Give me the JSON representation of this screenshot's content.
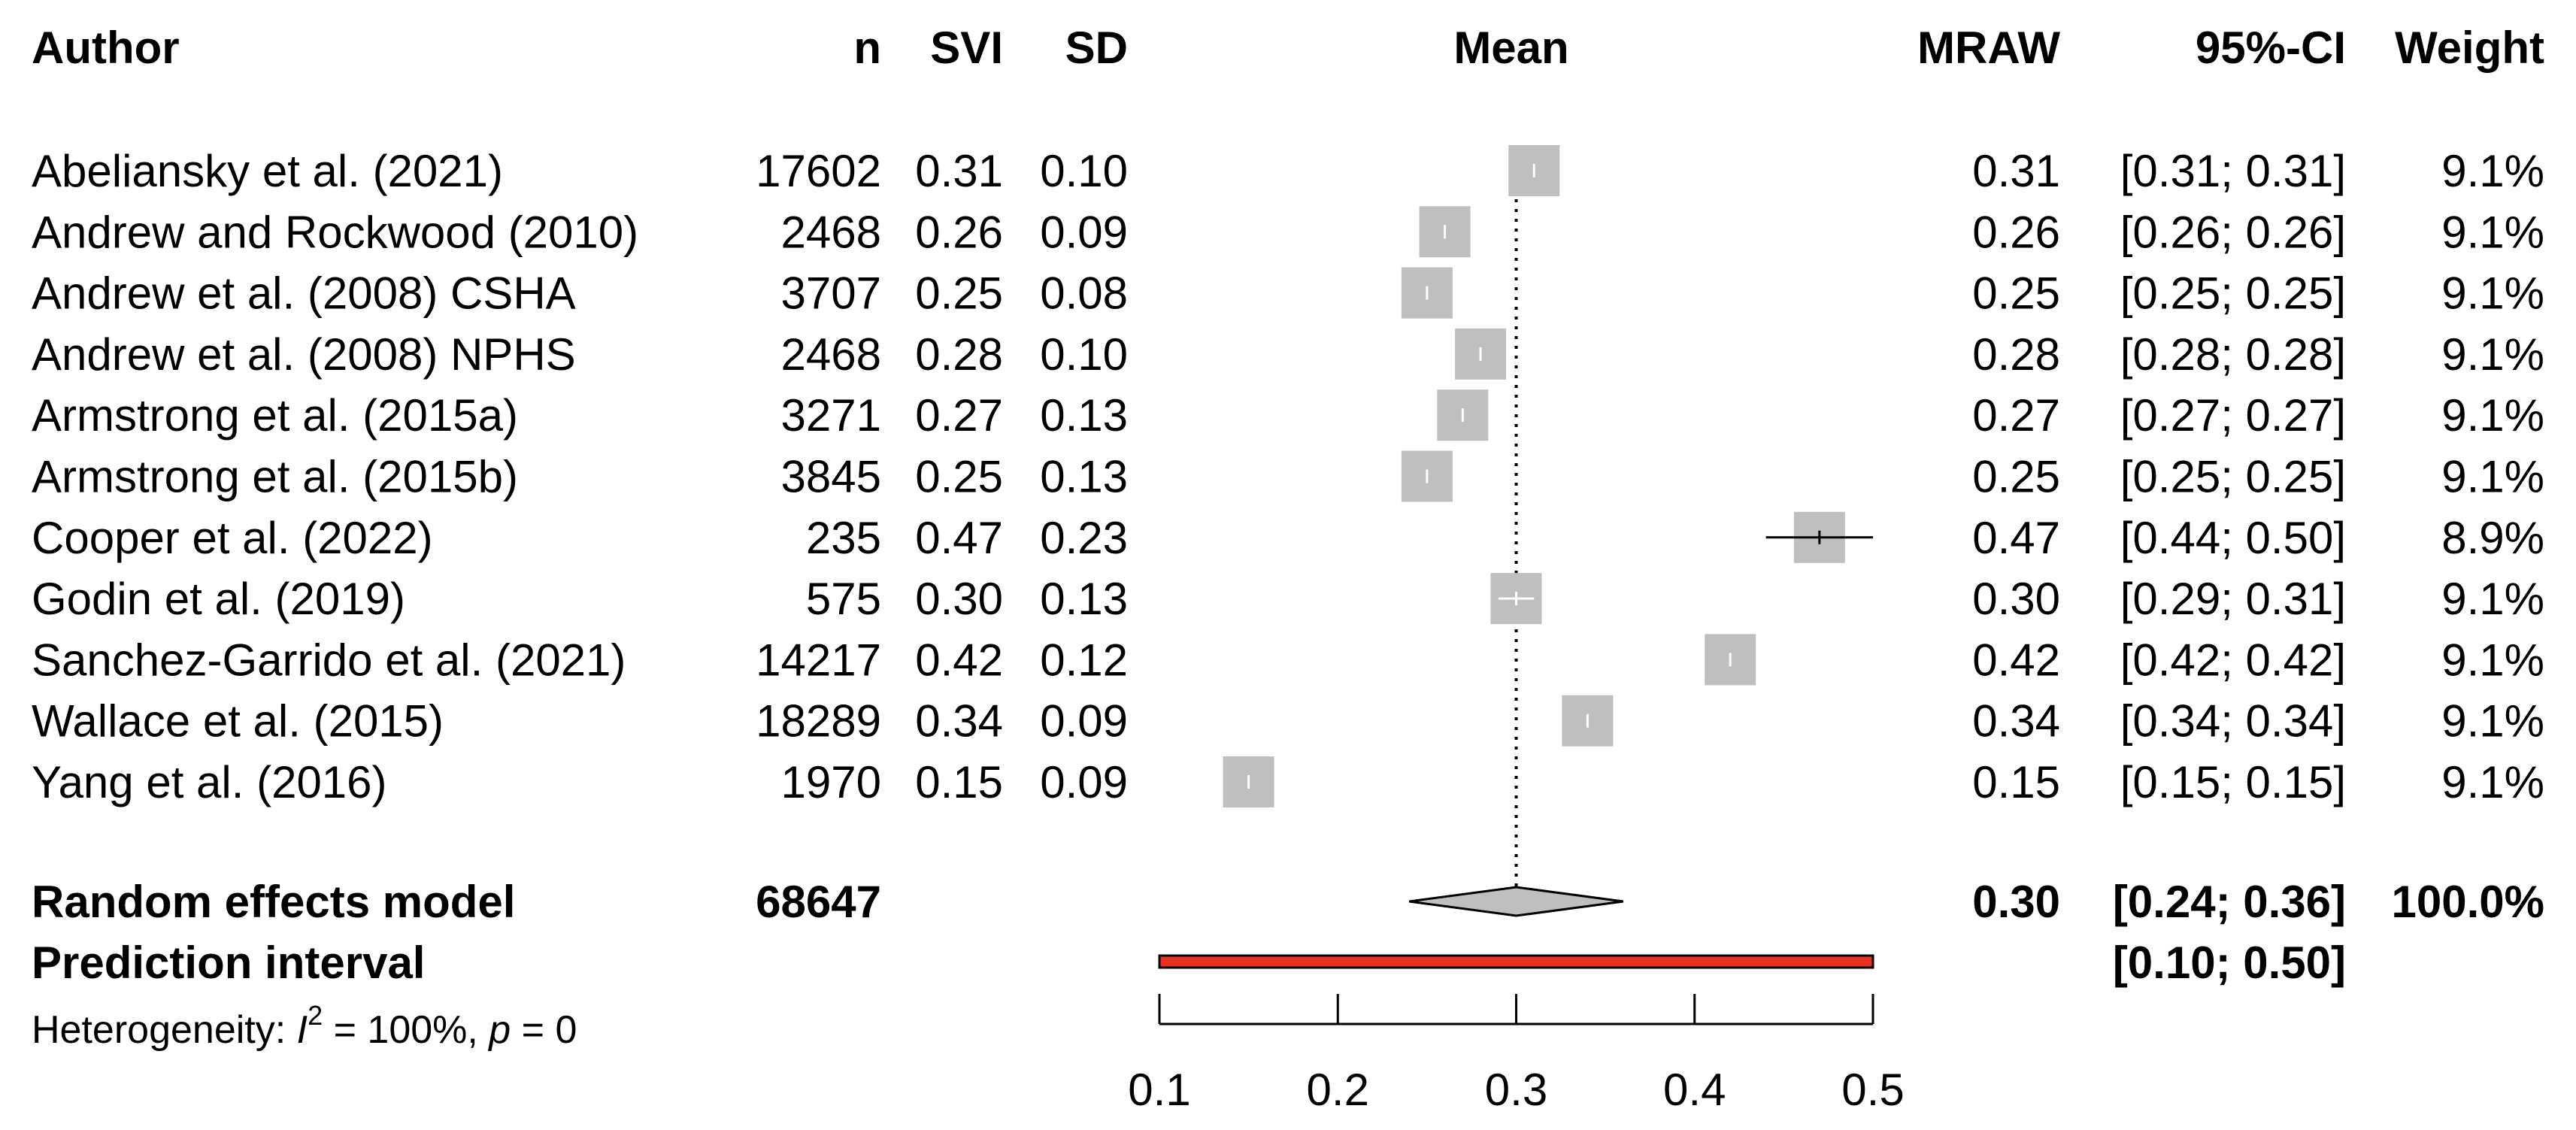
{
  "chart_data": {
    "type": "forest",
    "headers": {
      "author": "Author",
      "n": "n",
      "svi": "SVI",
      "sd": "SD",
      "mean": "Mean",
      "mraw": "MRAW",
      "ci": "95%-CI",
      "weight": "Weight"
    },
    "studies": [
      {
        "author": "Abeliansky et al. (2021)",
        "n": "17602",
        "svi": "0.31",
        "sd": "0.10",
        "mraw": "0.31",
        "ci": "[0.31; 0.31]",
        "weight": "9.1%",
        "mean": 0.31,
        "lower": 0.31,
        "upper": 0.31,
        "w": 9.1
      },
      {
        "author": "Andrew and Rockwood (2010)",
        "n": "2468",
        "svi": "0.26",
        "sd": "0.09",
        "mraw": "0.26",
        "ci": "[0.26; 0.26]",
        "weight": "9.1%",
        "mean": 0.26,
        "lower": 0.26,
        "upper": 0.26,
        "w": 9.1
      },
      {
        "author": "Andrew et al. (2008) CSHA",
        "n": "3707",
        "svi": "0.25",
        "sd": "0.08",
        "mraw": "0.25",
        "ci": "[0.25; 0.25]",
        "weight": "9.1%",
        "mean": 0.25,
        "lower": 0.25,
        "upper": 0.25,
        "w": 9.1
      },
      {
        "author": "Andrew et al. (2008) NPHS",
        "n": "2468",
        "svi": "0.28",
        "sd": "0.10",
        "mraw": "0.28",
        "ci": "[0.28; 0.28]",
        "weight": "9.1%",
        "mean": 0.28,
        "lower": 0.28,
        "upper": 0.28,
        "w": 9.1
      },
      {
        "author": "Armstrong et al. (2015a)",
        "n": "3271",
        "svi": "0.27",
        "sd": "0.13",
        "mraw": "0.27",
        "ci": "[0.27; 0.27]",
        "weight": "9.1%",
        "mean": 0.27,
        "lower": 0.27,
        "upper": 0.27,
        "w": 9.1
      },
      {
        "author": "Armstrong et al. (2015b)",
        "n": "3845",
        "svi": "0.25",
        "sd": "0.13",
        "mraw": "0.25",
        "ci": "[0.25; 0.25]",
        "weight": "9.1%",
        "mean": 0.25,
        "lower": 0.25,
        "upper": 0.25,
        "w": 9.1
      },
      {
        "author": "Cooper et al. (2022)",
        "n": "235",
        "svi": "0.47",
        "sd": "0.23",
        "mraw": "0.47",
        "ci": "[0.44; 0.50]",
        "weight": "8.9%",
        "mean": 0.47,
        "lower": 0.44,
        "upper": 0.5,
        "w": 8.9
      },
      {
        "author": "Godin et al. (2019)",
        "n": "575",
        "svi": "0.30",
        "sd": "0.13",
        "mraw": "0.30",
        "ci": "[0.29; 0.31]",
        "weight": "9.1%",
        "mean": 0.3,
        "lower": 0.29,
        "upper": 0.31,
        "w": 9.1
      },
      {
        "author": "Sanchez-Garrido et al. (2021)",
        "n": "14217",
        "svi": "0.42",
        "sd": "0.12",
        "mraw": "0.42",
        "ci": "[0.42; 0.42]",
        "weight": "9.1%",
        "mean": 0.42,
        "lower": 0.42,
        "upper": 0.42,
        "w": 9.1
      },
      {
        "author": "Wallace et al. (2015)",
        "n": "18289",
        "svi": "0.34",
        "sd": "0.09",
        "mraw": "0.34",
        "ci": "[0.34; 0.34]",
        "weight": "9.1%",
        "mean": 0.34,
        "lower": 0.34,
        "upper": 0.34,
        "w": 9.1
      },
      {
        "author": "Yang et al. (2016)",
        "n": "1970",
        "svi": "0.15",
        "sd": "0.09",
        "mraw": "0.15",
        "ci": "[0.15; 0.15]",
        "weight": "9.1%",
        "mean": 0.15,
        "lower": 0.15,
        "upper": 0.15,
        "w": 9.1
      }
    ],
    "pooled": {
      "label": "Random effects model",
      "n": "68647",
      "mraw": "0.30",
      "ci": "[0.24; 0.36]",
      "weight": "100.0%",
      "mean": 0.3,
      "lower": 0.24,
      "upper": 0.36
    },
    "prediction": {
      "label": "Prediction interval",
      "ci": "[0.10; 0.50]",
      "lower": 0.1,
      "upper": 0.5
    },
    "heterogeneity": {
      "prefix": "Heterogeneity: ",
      "i_symbol": "I",
      "i_sup": "2",
      "i_value": " = 100%, ",
      "p_symbol": "p",
      "p_value": " = 0"
    },
    "xaxis": {
      "range": [
        0.1,
        0.5
      ],
      "ticks": [
        0.1,
        0.2,
        0.3,
        0.4,
        0.5
      ],
      "tick_labels": [
        "0.1",
        "0.2",
        "0.3",
        "0.4",
        "0.5"
      ]
    },
    "reference_line": 0.3,
    "colors": {
      "box": "#bfbfbf",
      "diamond": "#bfbfbf",
      "prediction_bar": "#e8311f",
      "ci_line_inside": "#ffffff",
      "ci_line_outside": "#000000",
      "text": "#000000"
    }
  }
}
